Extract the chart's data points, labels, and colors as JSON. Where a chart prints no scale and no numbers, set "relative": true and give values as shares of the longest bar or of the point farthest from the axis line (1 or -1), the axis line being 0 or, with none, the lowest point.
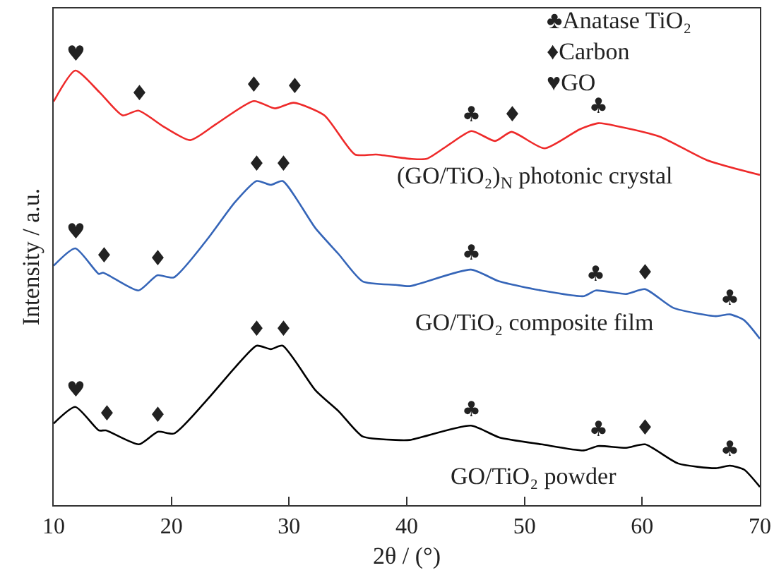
{
  "chart_data": {
    "type": "line",
    "relative": true,
    "xlabel": "2θ / (°)",
    "ylabel": "Intensity / a.u.",
    "xlim": [
      10,
      70
    ],
    "xticks": [
      10,
      20,
      30,
      40,
      50,
      60,
      70
    ],
    "grid": false,
    "legend": false,
    "marker": "none",
    "line_style": "solid",
    "series": [
      {
        "name": "(GO/TiO₂)$_{N}$ photonic crystal",
        "color": "#ee2a2a",
        "x": [
          10,
          11.84,
          13.9,
          15.85,
          17.2,
          19.4,
          21.6,
          23.8,
          27.0,
          28.8,
          30.4,
          33.0,
          35.6,
          37.4,
          40.3,
          41.7,
          43.6,
          45.5,
          47.5,
          48.9,
          51.7,
          54.7,
          56.3,
          57.9,
          61.5,
          65.5,
          70
        ],
        "values": [
          0.929,
          1.0,
          0.95,
          0.897,
          0.908,
          0.87,
          0.84,
          0.877,
          0.93,
          0.913,
          0.926,
          0.897,
          0.807,
          0.807,
          0.797,
          0.797,
          0.83,
          0.861,
          0.838,
          0.859,
          0.821,
          0.865,
          0.879,
          0.872,
          0.848,
          0.794,
          0.76
        ]
      },
      {
        "name": "GO/TiO₂ composite film",
        "color": "#3565b8",
        "x": [
          10,
          11.84,
          13.84,
          14.2,
          17.2,
          18.8,
          20.2,
          23.0,
          25.4,
          27.25,
          28.45,
          29.45,
          32.25,
          34.2,
          36.25,
          39.05,
          40.25,
          45.45,
          47.85,
          51.45,
          55.05,
          56.05,
          58.65,
          60.25,
          62.65,
          66.25,
          67.45,
          68.65,
          70
        ],
        "values": [
          0.551,
          0.591,
          0.532,
          0.535,
          0.494,
          0.529,
          0.524,
          0.61,
          0.697,
          0.746,
          0.737,
          0.746,
          0.637,
          0.578,
          0.515,
          0.507,
          0.504,
          0.542,
          0.515,
          0.494,
          0.481,
          0.494,
          0.486,
          0.497,
          0.454,
          0.435,
          0.439,
          0.426,
          0.383
        ]
      },
      {
        "name": "GO/TiO₂ powder",
        "color": "#000000",
        "x": [
          10,
          11.84,
          13.84,
          14.44,
          17.24,
          18.85,
          20.24,
          23.05,
          25.45,
          27.25,
          28.45,
          29.45,
          32.25,
          34.25,
          36.25,
          39.05,
          40.25,
          45.45,
          47.85,
          51.45,
          55.05,
          56.25,
          58.65,
          60.25,
          63.05,
          66.25,
          67.45,
          68.65,
          70
        ],
        "values": [
          0.188,
          0.226,
          0.172,
          0.172,
          0.14,
          0.169,
          0.165,
          0.243,
          0.318,
          0.367,
          0.359,
          0.367,
          0.264,
          0.215,
          0.158,
          0.15,
          0.15,
          0.183,
          0.156,
          0.14,
          0.126,
          0.136,
          0.132,
          0.14,
          0.096,
          0.085,
          0.091,
          0.082,
          0.042
        ]
      }
    ],
    "annotations": [
      "♣Anatase TiO₂",
      "♦Carbon",
      "♥GO",
      {
        "text": "♥",
        "x": 11.84,
        "y": 1.0
      },
      {
        "text": "♦",
        "x": 17.2,
        "y": 0.908
      },
      {
        "text": "♦",
        "x": 27.0,
        "y": 0.93
      },
      {
        "text": "♦",
        "x": 30.4,
        "y": 0.926
      },
      {
        "text": "♣",
        "x": 45.5,
        "y": 0.861
      },
      {
        "text": "♦",
        "x": 48.9,
        "y": 0.859
      },
      {
        "text": "♣",
        "x": 56.3,
        "y": 0.879
      },
      {
        "text": "♥",
        "x": 11.84,
        "y": 0.591
      },
      {
        "text": "♦",
        "x": 14.2,
        "y": 0.535
      },
      {
        "text": "♦",
        "x": 18.8,
        "y": 0.529
      },
      {
        "text": "♦",
        "x": 27.25,
        "y": 0.746
      },
      {
        "text": "♦",
        "x": 29.45,
        "y": 0.746
      },
      {
        "text": "♣",
        "x": 45.45,
        "y": 0.542
      },
      {
        "text": "♣",
        "x": 56.05,
        "y": 0.494
      },
      {
        "text": "♦",
        "x": 60.25,
        "y": 0.497
      },
      {
        "text": "♣",
        "x": 67.45,
        "y": 0.439
      },
      {
        "text": "♥",
        "x": 11.84,
        "y": 0.226
      },
      {
        "text": "♦",
        "x": 14.44,
        "y": 0.172
      },
      {
        "text": "♦",
        "x": 18.85,
        "y": 0.169
      },
      {
        "text": "♦",
        "x": 27.25,
        "y": 0.367
      },
      {
        "text": "♦",
        "x": 29.45,
        "y": 0.367
      },
      {
        "text": "♣",
        "x": 45.45,
        "y": 0.183
      },
      {
        "text": "♣",
        "x": 56.25,
        "y": 0.136
      },
      {
        "text": "♦",
        "x": 60.25,
        "y": 0.14
      },
      {
        "text": "♣",
        "x": 67.45,
        "y": 0.091
      }
    ]
  }
}
